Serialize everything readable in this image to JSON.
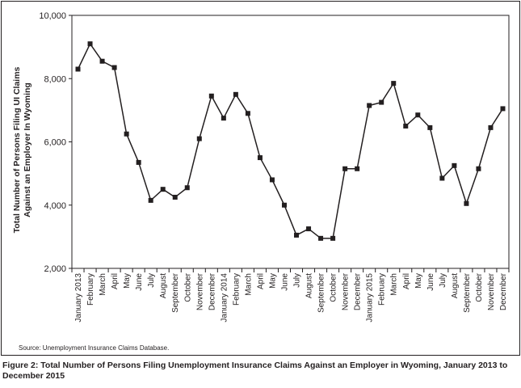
{
  "chart_data": {
    "type": "line",
    "title": "",
    "xlabel": "",
    "ylabel_lines": [
      "Total Number of Persons Filing UI Claims",
      "Against an Employer In Wyoming"
    ],
    "ylim": [
      2000,
      10000
    ],
    "yticks": [
      2000,
      4000,
      6000,
      8000,
      10000
    ],
    "ytick_labels": [
      "2,000",
      "4,000",
      "6,000",
      "8,000",
      "10,000"
    ],
    "grid": false,
    "categories": [
      "January 2013",
      "February",
      "March",
      "April",
      "May",
      "June",
      "July",
      "August",
      "September",
      "October",
      "November",
      "December",
      "January 2014",
      "February",
      "March",
      "April",
      "May",
      "June",
      "July",
      "August",
      "September",
      "October",
      "November",
      "December",
      "January 2015",
      "February",
      "March",
      "April",
      "May",
      "June",
      "July",
      "August",
      "September",
      "October",
      "November",
      "December"
    ],
    "series": [
      {
        "values": [
          8300,
          9100,
          8550,
          8350,
          6250,
          5350,
          4150,
          4500,
          4250,
          4550,
          6100,
          7450,
          6750,
          7500,
          6900,
          5500,
          4800,
          4000,
          3050,
          3250,
          2950,
          2950,
          5150,
          5150,
          7150,
          7250,
          7850,
          6500,
          6850,
          6450,
          4850,
          5250,
          4050,
          5150,
          6450,
          7050
        ]
      }
    ]
  },
  "source": "Source: Unemployment Insurance Claims Database.",
  "caption": {
    "prefix": "Figure 2:",
    "text": "Total Number of Persons Filing Unemployment Insurance Claims Against an Employer in Wyoming, January 2013 to December 2015"
  },
  "colors": {
    "line": "#231f20",
    "marker": "#231f20"
  }
}
